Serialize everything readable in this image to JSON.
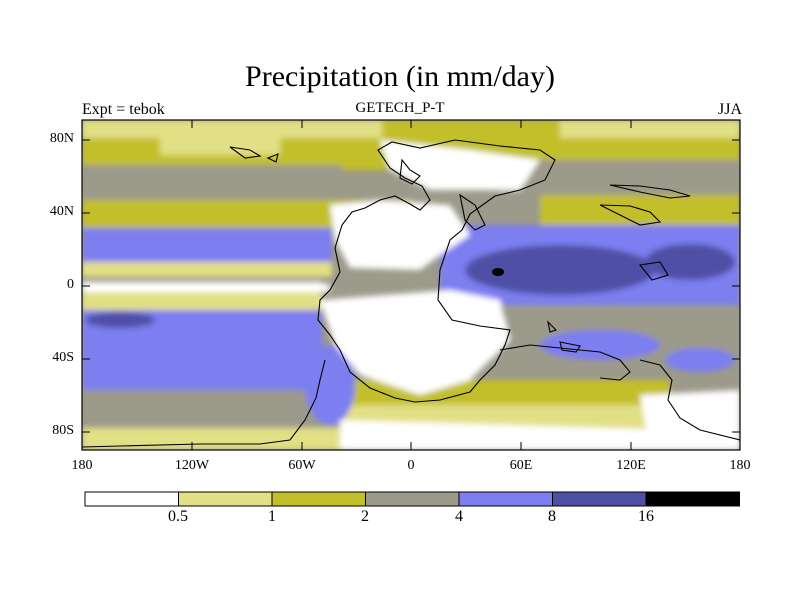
{
  "title": "Precipitation (in mm/day)",
  "subtitle_left": "Expt = tebok",
  "subtitle_center": "GETECH_P-T",
  "subtitle_right": "JJA",
  "axes": {
    "y_labels": [
      "80N",
      "40N",
      "0",
      "40S",
      "80S"
    ],
    "x_labels": [
      "180",
      "120W",
      "60W",
      "0",
      "60E",
      "120E",
      "180"
    ]
  },
  "legend": {
    "colors": [
      "#ffffff",
      "#e2e085",
      "#c2bf2a",
      "#9c9a8a",
      "#7d7ef0",
      "#4f4fa6",
      "#000000"
    ],
    "labels": [
      "0.5",
      "1",
      "2",
      "4",
      "8",
      "16"
    ]
  }
}
